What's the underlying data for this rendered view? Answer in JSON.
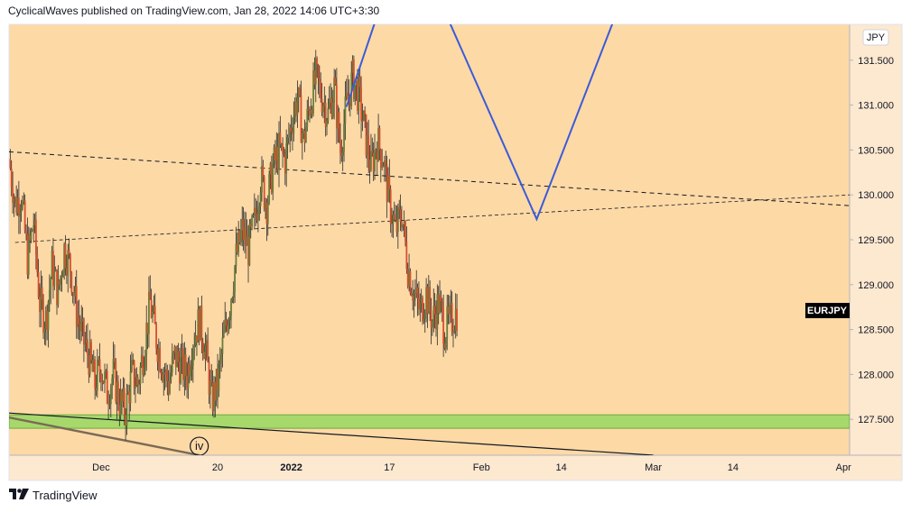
{
  "header": {
    "publisher": "CyclicalWaves published on TradingView.com, Jan 28, 2022 14:06 UTC+3:30"
  },
  "footer": {
    "brand": "TradingView",
    "logo_icon": "tradingview-logo-icon"
  },
  "colors": {
    "background_plot": "#fdd9a6",
    "candle": "#d95030",
    "projection": "#3a5bd9",
    "support_zone": "#a6d86c",
    "axis_bg": "#fde8d0"
  },
  "chart_data": {
    "type": "candlestick",
    "symbol": "EURJPY",
    "currency_badge": "JPY",
    "last_label": "EURJPY",
    "ylim": [
      127.1,
      131.9
    ],
    "y_ticks": [
      127.5,
      128.0,
      128.5,
      129.0,
      129.5,
      130.0,
      130.5,
      131.0,
      131.5
    ],
    "y_tick_labels": [
      "127.500",
      "128.000",
      "128.500",
      "129.000",
      "129.500",
      "130.000",
      "130.500",
      "131.000",
      "131.500"
    ],
    "x_ticks": [
      {
        "label": "Dec",
        "day": 0
      },
      {
        "label": "20",
        "day": 19
      },
      {
        "label": "2022",
        "day": 31
      },
      {
        "label": "17",
        "day": 47
      },
      {
        "label": "Feb",
        "day": 62
      },
      {
        "label": "14",
        "day": 75
      },
      {
        "label": "Mar",
        "day": 90
      },
      {
        "label": "14",
        "day": 103
      },
      {
        "label": "Apr",
        "day": 121
      }
    ],
    "bold_x_label": "2022",
    "xlim_days": [
      -15,
      122
    ],
    "price_path": [
      [
        -15,
        130.4
      ],
      [
        -14,
        129.9
      ],
      [
        -13,
        130.0
      ],
      [
        -12,
        129.3
      ],
      [
        -11,
        129.7
      ],
      [
        -10,
        128.8
      ],
      [
        -9,
        128.6
      ],
      [
        -8,
        129.2
      ],
      [
        -7,
        128.9
      ],
      [
        -6,
        129.4
      ],
      [
        -5,
        129.2
      ],
      [
        -4,
        128.7
      ],
      [
        -3,
        128.4
      ],
      [
        -2,
        128.2
      ],
      [
        -1,
        127.9
      ],
      [
        0,
        128.1
      ],
      [
        1,
        127.8
      ],
      [
        2,
        128.0
      ],
      [
        3,
        127.7
      ],
      [
        4,
        127.6
      ],
      [
        5,
        128.0
      ],
      [
        6,
        127.9
      ],
      [
        7,
        128.3
      ],
      [
        8,
        128.8
      ],
      [
        9,
        128.4
      ],
      [
        10,
        128.1
      ],
      [
        11,
        127.9
      ],
      [
        12,
        128.2
      ],
      [
        13,
        128.1
      ],
      [
        14,
        128.0
      ],
      [
        15,
        128.4
      ],
      [
        16,
        128.6
      ],
      [
        17,
        128.3
      ],
      [
        18,
        127.7
      ],
      [
        19,
        127.9
      ],
      [
        20,
        128.4
      ],
      [
        21,
        128.8
      ],
      [
        22,
        129.3
      ],
      [
        23,
        129.6
      ],
      [
        24,
        129.4
      ],
      [
        25,
        129.7
      ],
      [
        26,
        130.2
      ],
      [
        27,
        129.9
      ],
      [
        28,
        130.3
      ],
      [
        29,
        130.5
      ],
      [
        30,
        130.4
      ],
      [
        31,
        130.8
      ],
      [
        32,
        131.1
      ],
      [
        33,
        130.6
      ],
      [
        34,
        131.0
      ],
      [
        35,
        131.3
      ],
      [
        36,
        131.1
      ],
      [
        37,
        130.9
      ],
      [
        38,
        131.2
      ],
      [
        39,
        130.5
      ],
      [
        40,
        131.0
      ],
      [
        41,
        131.3
      ],
      [
        42,
        131.1
      ],
      [
        43,
        130.7
      ],
      [
        44,
        130.3
      ],
      [
        45,
        130.6
      ],
      [
        46,
        130.4
      ],
      [
        47,
        129.9
      ],
      [
        48,
        129.6
      ],
      [
        49,
        129.8
      ],
      [
        50,
        129.2
      ],
      [
        51,
        128.9
      ],
      [
        52,
        128.7
      ],
      [
        53,
        128.9
      ],
      [
        54,
        128.6
      ],
      [
        55,
        128.8
      ],
      [
        56,
        128.5
      ],
      [
        57,
        128.6
      ],
      [
        58,
        128.7
      ]
    ],
    "trend_lines": [
      {
        "style": "dashed",
        "from": [
          -15,
          130.48
        ],
        "to": [
          122,
          129.88
        ]
      },
      {
        "style": "dashed",
        "from": [
          -14,
          129.47
        ],
        "to": [
          122,
          130.0
        ]
      },
      {
        "style": "solid-black",
        "from": [
          -15,
          127.57
        ],
        "to": [
          90,
          127.1
        ]
      },
      {
        "style": "solid-gray",
        "from": [
          -15,
          127.52
        ],
        "to": [
          16,
          127.1
        ]
      }
    ],
    "projection_line": [
      [
        40,
        130.98
      ],
      [
        46,
        132.2
      ],
      [
        55,
        132.2
      ],
      [
        71,
        129.73
      ],
      [
        85,
        132.2
      ]
    ],
    "support_zone": {
      "from": 127.4,
      "to": 127.55
    },
    "annotations": [
      {
        "text": "iv",
        "day": 16,
        "price": 127.2
      }
    ]
  }
}
